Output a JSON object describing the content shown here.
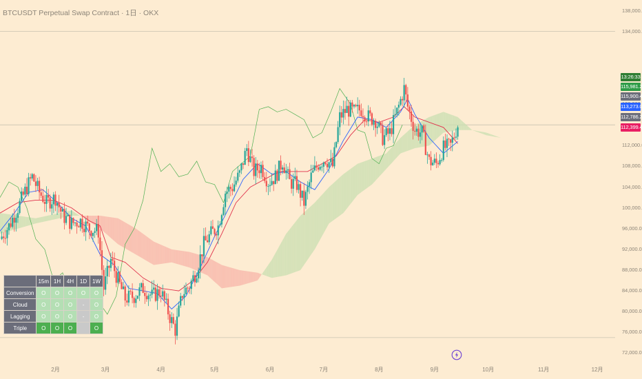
{
  "title": "BTCUSDT Perpetual Swap Contract · 1日 · OKX",
  "price_tags": [
    {
      "label": "13:26:33",
      "color": "#2e7d32"
    },
    {
      "label": "115,981.2",
      "color": "#2e9c47"
    },
    {
      "label": "115,900.4",
      "color": "#6b6d7a"
    },
    {
      "label": "113,273.0",
      "color": "#2962ff"
    },
    {
      "label": "112,786.2",
      "color": "#6b6d7a"
    },
    {
      "label": "112,399.4",
      "color": "#e91e63"
    }
  ],
  "table": {
    "columns": [
      "15m",
      "1H",
      "4H",
      "1D",
      "1W"
    ],
    "rows": [
      {
        "label": "Conversion",
        "cells": [
          "O",
          "O",
          "O",
          "O",
          "O"
        ],
        "states": [
          "ok",
          "ok",
          "ok",
          "ok",
          "ok"
        ]
      },
      {
        "label": "Cloud",
        "cells": [
          "O",
          "O",
          "O",
          "-",
          "O"
        ],
        "states": [
          "ok",
          "ok",
          "ok",
          "na",
          "ok"
        ]
      },
      {
        "label": "Lagging",
        "cells": [
          "O",
          "O",
          "O",
          "-",
          "O"
        ],
        "states": [
          "ok",
          "ok",
          "ok",
          "na",
          "ok"
        ]
      },
      {
        "label": "Triple",
        "cells": [
          "O",
          "O",
          "O",
          "",
          "O"
        ],
        "states": [
          "ok-strong",
          "ok-strong",
          "ok-strong",
          "na",
          "ok-strong"
        ]
      }
    ]
  },
  "colors": {
    "up": "#26a69a",
    "down": "#ef5350",
    "conversion": "#2962ff",
    "base": "#e0314b",
    "lagging": "#4caf50",
    "cloud_bull": "#c8dfb0",
    "cloud_bear": "#f7b4a8"
  },
  "chart_data": {
    "type": "line",
    "ylim": [
      71000,
      139000
    ],
    "y_ticks": [
      "138,000.0",
      "134,000.0",
      "120,000.0",
      "112,000.0",
      "108,000.0",
      "104,000.0",
      "100,000.0",
      "96,000.0",
      "92,000.0",
      "88,000.0",
      "84,000.0",
      "80,000.0",
      "76,000.0",
      "72,000.0"
    ],
    "y_tick_values": [
      138000,
      134000,
      120000,
      112000,
      108000,
      104000,
      100000,
      96000,
      92000,
      88000,
      84000,
      80000,
      76000,
      72000
    ],
    "x_ticks": [
      "2月",
      "3月",
      "4月",
      "5月",
      "6月",
      "7月",
      "8月",
      "9月",
      "10月",
      "11月",
      "12月"
    ],
    "x_tick_days": [
      31,
      59,
      90,
      120,
      151,
      181,
      212,
      243,
      273,
      304,
      334
    ],
    "x_range_days": [
      0,
      344
    ],
    "last_day": 256,
    "horizontal_levels": [
      134000,
      116000,
      75000
    ],
    "close": [
      [
        0,
        94000
      ],
      [
        5,
        96500
      ],
      [
        10,
        100000
      ],
      [
        15,
        104000
      ],
      [
        18,
        106000
      ],
      [
        22,
        103000
      ],
      [
        26,
        101000
      ],
      [
        31,
        102000
      ],
      [
        35,
        98500
      ],
      [
        40,
        97000
      ],
      [
        45,
        97500
      ],
      [
        50,
        96000
      ],
      [
        55,
        95500
      ],
      [
        58,
        84500
      ],
      [
        62,
        90000
      ],
      [
        66,
        86000
      ],
      [
        70,
        82500
      ],
      [
        75,
        83000
      ],
      [
        80,
        84500
      ],
      [
        85,
        83000
      ],
      [
        90,
        84000
      ],
      [
        95,
        79000
      ],
      [
        98,
        76500
      ],
      [
        102,
        83500
      ],
      [
        106,
        85000
      ],
      [
        110,
        88000
      ],
      [
        114,
        93000
      ],
      [
        118,
        95000
      ],
      [
        122,
        96500
      ],
      [
        126,
        103000
      ],
      [
        130,
        104000
      ],
      [
        134,
        106500
      ],
      [
        138,
        111500
      ],
      [
        142,
        107000
      ],
      [
        146,
        108000
      ],
      [
        150,
        105000
      ],
      [
        154,
        106000
      ],
      [
        158,
        109000
      ],
      [
        162,
        105000
      ],
      [
        166,
        104500
      ],
      [
        170,
        101000
      ],
      [
        174,
        106000
      ],
      [
        178,
        108500
      ],
      [
        182,
        109500
      ],
      [
        186,
        108000
      ],
      [
        190,
        117500
      ],
      [
        194,
        119000
      ],
      [
        198,
        118500
      ],
      [
        202,
        119000
      ],
      [
        206,
        117500
      ],
      [
        210,
        117000
      ],
      [
        214,
        113500
      ],
      [
        218,
        114500
      ],
      [
        222,
        118500
      ],
      [
        226,
        123000
      ],
      [
        228,
        119500
      ],
      [
        232,
        115000
      ],
      [
        236,
        114500
      ],
      [
        240,
        109000
      ],
      [
        244,
        108500
      ],
      [
        248,
        111500
      ],
      [
        252,
        112000
      ],
      [
        256,
        116000
      ]
    ],
    "conversion": [
      [
        0,
        95500
      ],
      [
        8,
        99000
      ],
      [
        16,
        103000
      ],
      [
        24,
        103500
      ],
      [
        32,
        101000
      ],
      [
        40,
        98000
      ],
      [
        48,
        96500
      ],
      [
        56,
        91000
      ],
      [
        64,
        89000
      ],
      [
        72,
        84500
      ],
      [
        80,
        84000
      ],
      [
        88,
        83500
      ],
      [
        96,
        80500
      ],
      [
        104,
        83000
      ],
      [
        112,
        88500
      ],
      [
        120,
        94500
      ],
      [
        128,
        100000
      ],
      [
        136,
        105500
      ],
      [
        144,
        108500
      ],
      [
        152,
        106500
      ],
      [
        160,
        107000
      ],
      [
        168,
        105000
      ],
      [
        176,
        103500
      ],
      [
        184,
        107500
      ],
      [
        192,
        113000
      ],
      [
        200,
        117500
      ],
      [
        208,
        117000
      ],
      [
        216,
        115500
      ],
      [
        224,
        118500
      ],
      [
        228,
        121000
      ],
      [
        232,
        118000
      ],
      [
        240,
        113500
      ],
      [
        248,
        110500
      ],
      [
        256,
        112800
      ]
    ],
    "base": [
      [
        0,
        99000
      ],
      [
        10,
        101000
      ],
      [
        20,
        101500
      ],
      [
        30,
        101500
      ],
      [
        40,
        100000
      ],
      [
        50,
        97500
      ],
      [
        56,
        96500
      ],
      [
        62,
        90500
      ],
      [
        70,
        89500
      ],
      [
        80,
        86500
      ],
      [
        90,
        84500
      ],
      [
        100,
        84000
      ],
      [
        108,
        86000
      ],
      [
        116,
        89500
      ],
      [
        124,
        95000
      ],
      [
        132,
        101000
      ],
      [
        140,
        104000
      ],
      [
        148,
        105500
      ],
      [
        156,
        107000
      ],
      [
        164,
        107000
      ],
      [
        172,
        107000
      ],
      [
        180,
        108500
      ],
      [
        188,
        110000
      ],
      [
        196,
        114000
      ],
      [
        204,
        117000
      ],
      [
        212,
        116500
      ],
      [
        220,
        117500
      ],
      [
        226,
        119500
      ],
      [
        232,
        117500
      ],
      [
        240,
        116500
      ],
      [
        248,
        115500
      ],
      [
        256,
        112400
      ]
    ],
    "lagging": [
      [
        0,
        102000
      ],
      [
        5,
        105000
      ],
      [
        10,
        104000
      ],
      [
        15,
        100000
      ],
      [
        20,
        94000
      ],
      [
        25,
        92000
      ],
      [
        30,
        86000
      ],
      [
        35,
        87500
      ],
      [
        40,
        82500
      ],
      [
        45,
        84000
      ],
      [
        50,
        83500
      ],
      [
        55,
        82000
      ],
      [
        60,
        79500
      ],
      [
        65,
        83000
      ],
      [
        70,
        93000
      ],
      [
        75,
        96000
      ],
      [
        80,
        101500
      ],
      [
        85,
        111500
      ],
      [
        90,
        107000
      ],
      [
        95,
        108500
      ],
      [
        100,
        106000
      ],
      [
        105,
        106500
      ],
      [
        110,
        109000
      ],
      [
        115,
        105000
      ],
      [
        120,
        104500
      ],
      [
        125,
        101000
      ],
      [
        130,
        107000
      ],
      [
        135,
        108500
      ],
      [
        140,
        110000
      ],
      [
        145,
        119000
      ],
      [
        150,
        119500
      ],
      [
        155,
        118500
      ],
      [
        160,
        119000
      ],
      [
        165,
        118000
      ],
      [
        170,
        117000
      ],
      [
        175,
        113500
      ],
      [
        180,
        114500
      ],
      [
        185,
        118500
      ],
      [
        190,
        123000
      ],
      [
        196,
        120000
      ],
      [
        200,
        115000
      ],
      [
        204,
        114500
      ],
      [
        208,
        109500
      ],
      [
        212,
        108500
      ],
      [
        216,
        111500
      ],
      [
        220,
        112000
      ],
      [
        225,
        116000
      ]
    ],
    "span_a": [
      [
        0,
        99000
      ],
      [
        20,
        98000
      ],
      [
        40,
        99500
      ],
      [
        56,
        96000
      ],
      [
        66,
        93000
      ],
      [
        76,
        91000
      ],
      [
        86,
        89000
      ],
      [
        96,
        89500
      ],
      [
        106,
        88500
      ],
      [
        116,
        87000
      ],
      [
        124,
        84500
      ],
      [
        134,
        85000
      ],
      [
        144,
        86000
      ],
      [
        152,
        90000
      ],
      [
        160,
        95000
      ],
      [
        168,
        98500
      ],
      [
        176,
        101000
      ],
      [
        184,
        104000
      ],
      [
        192,
        106500
      ],
      [
        200,
        108500
      ],
      [
        208,
        109500
      ],
      [
        216,
        110500
      ],
      [
        224,
        113500
      ],
      [
        232,
        116000
      ],
      [
        240,
        117500
      ],
      [
        248,
        118500
      ],
      [
        256,
        117500
      ],
      [
        264,
        115000
      ],
      [
        272,
        114500
      ],
      [
        280,
        113500
      ],
      [
        290,
        113500
      ]
    ],
    "span_b": [
      [
        0,
        95000
      ],
      [
        20,
        97000
      ],
      [
        40,
        98500
      ],
      [
        56,
        98500
      ],
      [
        66,
        98000
      ],
      [
        76,
        96000
      ],
      [
        86,
        93500
      ],
      [
        96,
        92000
      ],
      [
        106,
        91500
      ],
      [
        116,
        90500
      ],
      [
        124,
        89000
      ],
      [
        134,
        88000
      ],
      [
        144,
        87500
      ],
      [
        152,
        86500
      ],
      [
        160,
        87000
      ],
      [
        168,
        88000
      ],
      [
        176,
        92000
      ],
      [
        184,
        97000
      ],
      [
        192,
        99000
      ],
      [
        200,
        102500
      ],
      [
        208,
        104500
      ],
      [
        216,
        107500
      ],
      [
        224,
        110500
      ],
      [
        232,
        111500
      ],
      [
        240,
        112000
      ],
      [
        248,
        114500
      ],
      [
        256,
        115000
      ],
      [
        264,
        115000
      ],
      [
        272,
        114000
      ],
      [
        280,
        113500
      ],
      [
        290,
        113500
      ]
    ]
  }
}
